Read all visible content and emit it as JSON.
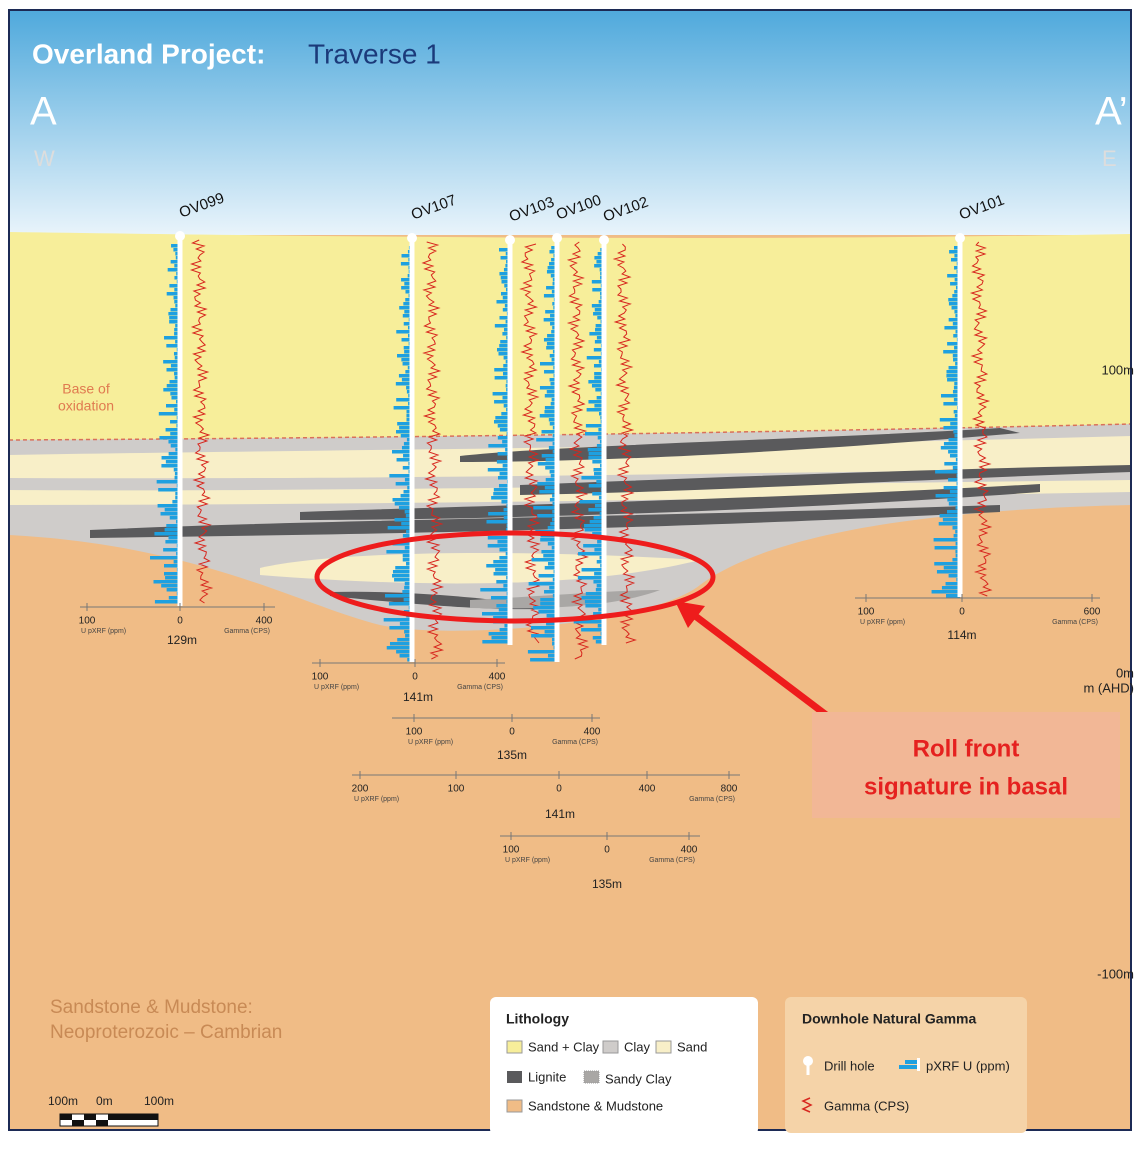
{
  "header": {
    "title_bold": "Overland Project:",
    "title_rest": "Traverse 1"
  },
  "section_ends": {
    "west": {
      "label": "A",
      "direction": "W"
    },
    "east": {
      "label": "A’",
      "direction": "E"
    }
  },
  "holes": [
    {
      "name": "OV099",
      "scale": {
        "ticks": [
          "100",
          "0",
          "400"
        ],
        "u_label": "U pXRF (ppm)",
        "gamma_label": "Gamma (CPS)",
        "depth": "129m"
      }
    },
    {
      "name": "OV107",
      "scale": {
        "ticks": [
          "100",
          "0",
          "400"
        ],
        "u_label": "U pXRF (ppm)",
        "gamma_label": "Gamma (CPS)",
        "depth": "141m"
      }
    },
    {
      "name": "OV103",
      "scale": {
        "ticks": [
          "100",
          "0",
          "400"
        ],
        "u_label": "U pXRF (ppm)",
        "gamma_label": "Gamma (CPS)",
        "depth": "135m"
      }
    },
    {
      "name": "OV100",
      "scale": {
        "ticks": [
          "200",
          "100",
          "0",
          "400",
          "800"
        ],
        "u_label": "U pXRF (ppm)",
        "gamma_label": "Gamma (CPS)",
        "depth": "141m"
      }
    },
    {
      "name": "OV102",
      "scale": {
        "ticks": [
          "100",
          "0",
          "400"
        ],
        "u_label": "U pXRF (ppm)",
        "gamma_label": "Gamma (CPS)",
        "depth": "135m"
      }
    },
    {
      "name": "OV101",
      "scale": {
        "ticks": [
          "100",
          "0",
          "600"
        ],
        "u_label": "U pXRF (ppm)",
        "gamma_label": "Gamma (CPS)",
        "depth": "114m"
      }
    }
  ],
  "elevation_labels": {
    "upper": "100m",
    "zero": "0m",
    "unit": "m (AHD)",
    "lower": "-100m"
  },
  "annotations": {
    "base_of_oxidation_1": "Base of",
    "base_of_oxidation_2": "oxidation",
    "callout_1": "Roll front",
    "callout_2": "signature in basal",
    "basement_1": "Sandstone & Mudstone:",
    "basement_2": "Neoproterozoic – Cambrian"
  },
  "scale_bar": {
    "left": "100m",
    "middle": "0m",
    "right": "100m"
  },
  "lithology_legend": {
    "title": "Lithology",
    "items": [
      "Sand + Clay",
      "Clay",
      "Sand",
      "Lignite",
      "Sandy Clay",
      "Sandstone & Mudstone"
    ]
  },
  "gamma_legend": {
    "title": "Downhole Natural Gamma",
    "items": [
      "Drill hole",
      "pXRF U (ppm)",
      "Gamma (CPS)"
    ]
  }
}
